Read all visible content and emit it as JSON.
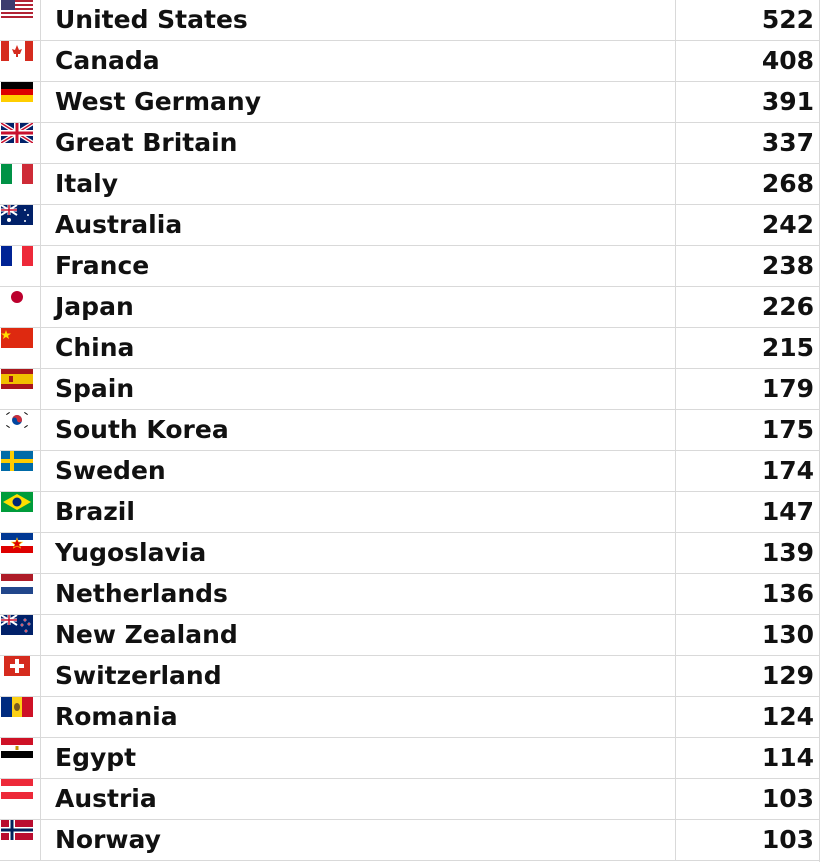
{
  "rows": [
    {
      "country": "United States",
      "value": "522",
      "flag_icon": "us-flag-icon"
    },
    {
      "country": "Canada",
      "value": "408",
      "flag_icon": "canada-flag-icon"
    },
    {
      "country": "West Germany",
      "value": "391",
      "flag_icon": "germany-flag-icon"
    },
    {
      "country": "Great Britain",
      "value": "337",
      "flag_icon": "great-britain-flag-icon"
    },
    {
      "country": "Italy",
      "value": "268",
      "flag_icon": "italy-flag-icon"
    },
    {
      "country": "Australia",
      "value": "242",
      "flag_icon": "australia-flag-icon"
    },
    {
      "country": "France",
      "value": "238",
      "flag_icon": "france-flag-icon"
    },
    {
      "country": "Japan",
      "value": "226",
      "flag_icon": "japan-flag-icon"
    },
    {
      "country": "China",
      "value": "215",
      "flag_icon": "china-flag-icon"
    },
    {
      "country": "Spain",
      "value": "179",
      "flag_icon": "spain-flag-icon"
    },
    {
      "country": "South Korea",
      "value": "175",
      "flag_icon": "south-korea-flag-icon"
    },
    {
      "country": "Sweden",
      "value": "174",
      "flag_icon": "sweden-flag-icon"
    },
    {
      "country": "Brazil",
      "value": "147",
      "flag_icon": "brazil-flag-icon"
    },
    {
      "country": "Yugoslavia",
      "value": "139",
      "flag_icon": "yugoslavia-flag-icon"
    },
    {
      "country": "Netherlands",
      "value": "136",
      "flag_icon": "netherlands-flag-icon"
    },
    {
      "country": "New Zealand",
      "value": "130",
      "flag_icon": "new-zealand-flag-icon"
    },
    {
      "country": "Switzerland",
      "value": "129",
      "flag_icon": "switzerland-flag-icon"
    },
    {
      "country": "Romania",
      "value": "124",
      "flag_icon": "romania-flag-icon"
    },
    {
      "country": "Egypt",
      "value": "114",
      "flag_icon": "egypt-flag-icon"
    },
    {
      "country": "Austria",
      "value": "103",
      "flag_icon": "austria-flag-icon"
    },
    {
      "country": "Norway",
      "value": "103",
      "flag_icon": "norway-flag-icon"
    }
  ]
}
